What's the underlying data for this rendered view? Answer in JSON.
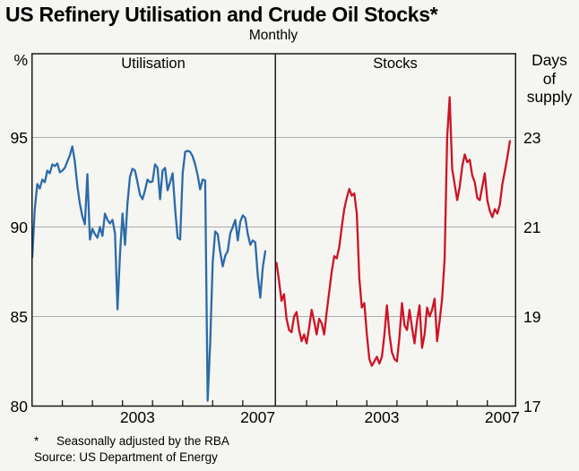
{
  "page": {
    "background": "#f5f5f2"
  },
  "chart_data": {
    "type": "line",
    "title": "US Refinery Utilisation and Crude Oil Stocks*",
    "subtitle": "Monthly",
    "frequency": "monthly",
    "x_start": "2000-01",
    "x_end": "2007-10",
    "grid": "horizontal",
    "footnote_marker": "*",
    "footnote_text": "Seasonally adjusted by the RBA",
    "source": "Source: US Department of Energy",
    "colors": {
      "utilisation_line": "#2b6ba8",
      "stocks_line": "#cc1425",
      "gridline": "#adadad",
      "axis": "#1a1a1a"
    },
    "panels": [
      {
        "label": "Utilisation",
        "axis": {
          "side": "left",
          "unit": "%",
          "ticks": [
            "95",
            "90",
            "85",
            "80"
          ],
          "tick_values": [
            95,
            90,
            85,
            80
          ],
          "ylim": [
            80,
            99.7
          ]
        },
        "x_tick_years": [
          2001,
          2002,
          2003,
          2004,
          2005,
          2006,
          2007
        ],
        "x_labels": [
          {
            "text": "2003",
            "year": 2003
          },
          {
            "text": "2007",
            "year": 2007
          }
        ],
        "series": [
          {
            "name": "US refinery utilisation (%)",
            "color": "#2b6ba8",
            "values": [
              88.3,
              91.0,
              92.4,
              92.15,
              92.65,
              92.5,
              93.15,
              93.0,
              93.5,
              93.4,
              93.55,
              93.05,
              93.15,
              93.3,
              93.65,
              94.0,
              94.5,
              93.65,
              92.3,
              91.3,
              90.6,
              90.15,
              92.95,
              89.3,
              89.9,
              89.6,
              89.4,
              90.0,
              89.5,
              90.75,
              90.4,
              90.2,
              90.4,
              89.65,
              85.4,
              88.5,
              90.75,
              89.0,
              91.3,
              92.8,
              93.25,
              93.15,
              92.5,
              91.8,
              91.55,
              92.05,
              92.65,
              92.5,
              92.55,
              93.5,
              93.3,
              91.55,
              93.15,
              93.3,
              92.05,
              92.5,
              93.0,
              91.0,
              89.4,
              89.3,
              93.0,
              94.2,
              94.25,
              94.2,
              93.95,
              93.5,
              92.9,
              92.1,
              92.65,
              92.6,
              80.3,
              83.5,
              88.0,
              89.75,
              89.6,
              88.6,
              87.8,
              88.4,
              88.65,
              89.65,
              90.0,
              90.4,
              89.25,
              90.3,
              90.65,
              90.5,
              89.6,
              89.0,
              89.25,
              89.15,
              87.3,
              86.05,
              87.75,
              88.65
            ]
          }
        ]
      },
      {
        "label": "Stocks",
        "axis": {
          "side": "right",
          "unit": "Days\nof\nsupply",
          "ticks": [
            "23",
            "21",
            "19",
            "17"
          ],
          "tick_values": [
            23,
            21,
            19,
            17
          ],
          "ylim": [
            17,
            24.9
          ]
        },
        "x_tick_years": [
          2001,
          2002,
          2003,
          2004,
          2005,
          2006,
          2007
        ],
        "x_labels": [
          {
            "text": "2003",
            "year": 2003
          },
          {
            "text": "2007",
            "year": 2007
          }
        ],
        "series": [
          {
            "name": "US crude oil stocks (days of supply)",
            "color": "#cc1425",
            "values": [
              20.2,
              19.8,
              19.35,
              19.5,
              18.95,
              18.7,
              18.65,
              19.0,
              19.1,
              18.7,
              18.45,
              18.6,
              18.4,
              18.75,
              19.15,
              18.9,
              18.6,
              18.95,
              18.85,
              18.6,
              19.1,
              19.55,
              20.0,
              20.35,
              20.3,
              20.55,
              21.0,
              21.4,
              21.65,
              21.85,
              21.7,
              21.75,
              21.3,
              19.85,
              19.2,
              19.3,
              18.6,
              18.05,
              17.9,
              18.0,
              18.1,
              17.95,
              18.1,
              18.6,
              19.25,
              18.6,
              18.2,
              18.05,
              18.0,
              18.55,
              19.3,
              18.8,
              18.7,
              19.15,
              18.75,
              18.4,
              18.9,
              19.25,
              18.3,
              18.6,
              19.2,
              19.0,
              19.15,
              19.4,
              18.45,
              18.9,
              19.4,
              20.3,
              23.0,
              23.9,
              22.3,
              21.95,
              21.6,
              21.9,
              22.35,
              22.62,
              22.45,
              22.5,
              22.15,
              22.0,
              21.65,
              21.6,
              21.9,
              22.2,
              21.6,
              21.36,
              21.22,
              21.4,
              21.3,
              21.5,
              21.96,
              22.25,
              22.56,
              22.92
            ]
          }
        ]
      }
    ]
  }
}
